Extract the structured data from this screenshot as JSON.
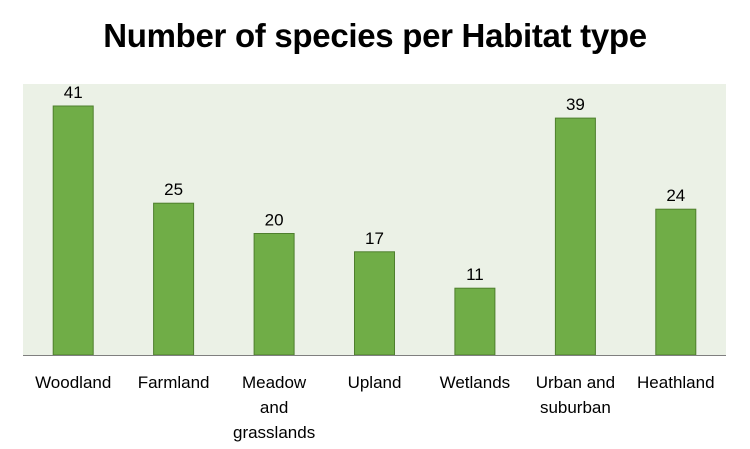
{
  "chart_data": {
    "type": "bar",
    "title": "Number of species per Habitat type",
    "xlabel": "",
    "ylabel": "",
    "categories": [
      "Woodland",
      "Farmland",
      "Meadow and grasslands",
      "Upland",
      "Wetlands",
      "Urban and suburban",
      "Heathland"
    ],
    "category_lines": [
      [
        "Woodland"
      ],
      [
        "Farmland"
      ],
      [
        "Meadow",
        "and",
        "grasslands"
      ],
      [
        "Upland"
      ],
      [
        "Wetlands"
      ],
      [
        "Urban and",
        "suburban"
      ],
      [
        "Heathland"
      ]
    ],
    "values": [
      41,
      25,
      20,
      17,
      11,
      39,
      24
    ],
    "data_labels": [
      "41",
      "25",
      "20",
      "17",
      "11",
      "39",
      "24"
    ],
    "ylim": [
      0,
      41
    ],
    "grid": false,
    "legend": "none",
    "colors": {
      "bar_fill": "#70ad47",
      "bar_stroke": "#4e7f2d",
      "plot_background": "#ebf1e6",
      "axis": "#7f7f7f"
    }
  }
}
